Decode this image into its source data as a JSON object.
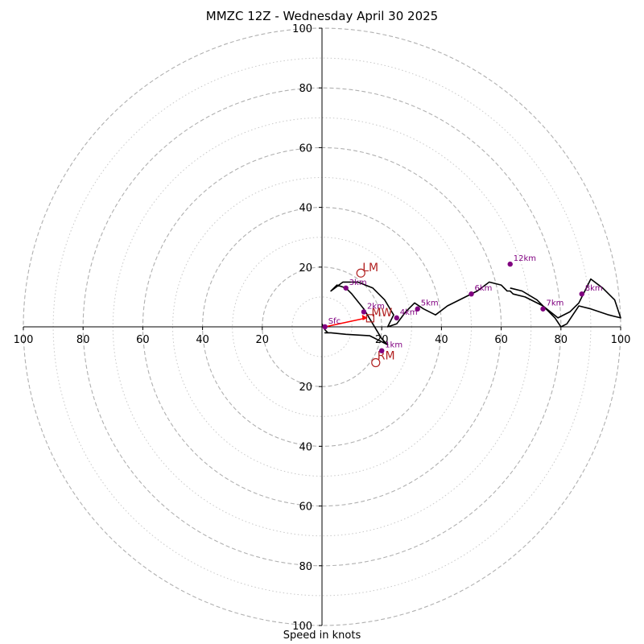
{
  "chart_data": {
    "type": "scatter",
    "subtype": "hodograph",
    "title": "MMZC 12Z - Wednesday April 30 2025",
    "xlabel": "Speed in knots",
    "range": [
      0,
      100
    ],
    "ring_step_major": 20,
    "ring_step_minor": 10,
    "grid": true,
    "x_ticks": [
      "100",
      "80",
      "60",
      "40",
      "20",
      "20",
      "40",
      "60",
      "80",
      "100"
    ],
    "y_ticks_top": [
      "100",
      "80",
      "60",
      "40",
      "20"
    ],
    "y_ticks_bottom": [
      "20",
      "40",
      "60",
      "80",
      "100"
    ],
    "wind_trace": {
      "color": "#000000",
      "x": [
        0,
        1,
        2,
        1,
        3,
        8,
        16,
        22,
        20,
        17,
        14,
        10,
        8,
        5,
        3,
        7,
        12,
        17,
        21,
        24,
        22,
        25,
        28,
        31,
        34,
        38,
        42,
        48,
        52,
        56,
        60,
        62,
        63,
        64,
        68,
        74,
        79,
        83,
        86,
        88,
        90,
        94,
        98,
        100,
        96,
        90,
        86,
        84,
        82,
        80,
        78,
        76,
        72,
        67,
        63
      ],
      "y": [
        1,
        -1,
        -2,
        -2,
        -2,
        -2.5,
        -3,
        -6,
        -4,
        1,
        6,
        11,
        13,
        14,
        12,
        15,
        15,
        13,
        9,
        4,
        0,
        1,
        5,
        8,
        6,
        4,
        7,
        10,
        12,
        15,
        14,
        12,
        12,
        11,
        10,
        7,
        3,
        5,
        8,
        12,
        16,
        13,
        9,
        3,
        4,
        6,
        7,
        4,
        1,
        0,
        3,
        5,
        9,
        12,
        13
      ]
    },
    "height_markers": {
      "color": "#800080",
      "points": [
        {
          "label": "Sfc",
          "x": 1,
          "y": 0
        },
        {
          "label": "1km",
          "x": 20,
          "y": -8
        },
        {
          "label": "2km",
          "x": 14,
          "y": 5
        },
        {
          "label": "3km",
          "x": 8,
          "y": 13
        },
        {
          "label": "4km",
          "x": 25,
          "y": 3
        },
        {
          "label": "5km",
          "x": 32,
          "y": 6
        },
        {
          "label": "6km",
          "x": 50,
          "y": 11
        },
        {
          "label": "7km",
          "x": 74,
          "y": 6
        },
        {
          "label": "8km",
          "x": 87,
          "y": 11
        },
        {
          "label": "12km",
          "x": 63,
          "y": 21
        }
      ]
    },
    "storm_motion": {
      "color": "#b22222",
      "LM": {
        "label": "LM",
        "x": 13,
        "y": 18
      },
      "RM": {
        "label": "RM",
        "x": 18,
        "y": -12
      },
      "MW": {
        "label": "MW",
        "x": 16,
        "y": 3
      }
    },
    "shear_vector": {
      "color": "#ff0000",
      "from": [
        1,
        0
      ],
      "to": [
        15,
        3
      ]
    }
  }
}
